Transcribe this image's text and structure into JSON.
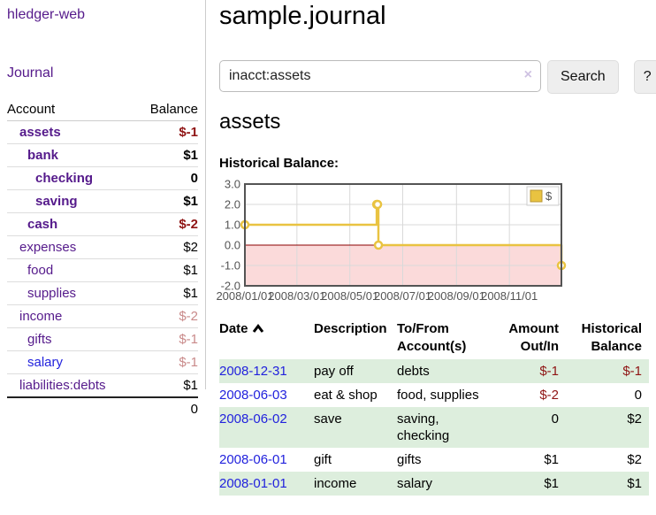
{
  "sidebar": {
    "app_title": "hledger-web",
    "nav_journal": "Journal",
    "accounts_table": {
      "header_account": "Account",
      "header_balance": "Balance",
      "rows": [
        {
          "name": "assets",
          "indent": 1,
          "bold": true,
          "link_color": "purple",
          "balance": "$-1",
          "balance_style": "neg-strong"
        },
        {
          "name": "bank",
          "indent": 2,
          "bold": true,
          "link_color": "purple",
          "balance": "$1",
          "balance_style": "pos"
        },
        {
          "name": "checking",
          "indent": 3,
          "bold": true,
          "link_color": "purple",
          "balance": "0",
          "balance_style": "pos"
        },
        {
          "name": "saving",
          "indent": 3,
          "bold": true,
          "link_color": "purple",
          "balance": "$1",
          "balance_style": "pos"
        },
        {
          "name": "cash",
          "indent": 2,
          "bold": true,
          "link_color": "purple",
          "balance": "$-2",
          "balance_style": "neg-strong"
        },
        {
          "name": "expenses",
          "indent": 1,
          "bold": false,
          "link_color": "purple",
          "balance": "$2",
          "balance_style": "pos"
        },
        {
          "name": "food",
          "indent": 2,
          "bold": false,
          "link_color": "purple",
          "balance": "$1",
          "balance_style": "pos"
        },
        {
          "name": "supplies",
          "indent": 2,
          "bold": false,
          "link_color": "purple",
          "balance": "$1",
          "balance_style": "pos"
        },
        {
          "name": "income",
          "indent": 1,
          "bold": false,
          "link_color": "purple",
          "balance": "$-2",
          "balance_style": "neg-soft"
        },
        {
          "name": "gifts",
          "indent": 2,
          "bold": false,
          "link_color": "purple",
          "balance": "$-1",
          "balance_style": "neg-soft"
        },
        {
          "name": "salary",
          "indent": 2,
          "bold": false,
          "link_color": "blue",
          "balance": "$-1",
          "balance_style": "neg-soft"
        },
        {
          "name": "liabilities:debts",
          "indent": 1,
          "bold": false,
          "link_color": "purple",
          "balance": "$1",
          "balance_style": "pos"
        }
      ],
      "total": "0"
    }
  },
  "header": {
    "title": "sample.journal"
  },
  "search": {
    "value": "inacct:assets",
    "clear_icon": "×",
    "button_label": "Search",
    "help_label": "?"
  },
  "main": {
    "account_heading": "assets"
  },
  "chart_data": {
    "type": "line",
    "step": true,
    "title": "Historical Balance:",
    "series": [
      {
        "name": "$",
        "color": "#e9c341",
        "points": [
          {
            "date": "2008-01-01",
            "value": 1
          },
          {
            "date": "2008-06-01",
            "value": 2
          },
          {
            "date": "2008-06-02",
            "value": 2
          },
          {
            "date": "2008-06-03",
            "value": 0
          },
          {
            "date": "2008-12-31",
            "value": -1
          }
        ]
      }
    ],
    "x_range": [
      "2008-01-01",
      "2008-12-31"
    ],
    "ylim": [
      -2,
      3
    ],
    "y_ticks": [
      3,
      2,
      1,
      0,
      -1,
      -2
    ],
    "x_ticks": [
      "2008/01/01",
      "2008/03/01",
      "2008/05/01",
      "2008/07/01",
      "2008/09/01",
      "2008/11/01"
    ],
    "legend_position": "top-right",
    "grid": true,
    "colors": {
      "grid": "#d9d9d9",
      "border": "#545454",
      "tick_text": "#545454",
      "zero_line": "#8b0000",
      "negative_region": "#fbdada",
      "legend_swatch_border": "#b89530",
      "legend_border": "#cccccc",
      "marker_fill": "#ffffff"
    }
  },
  "register_table": {
    "headers": {
      "date": "Date",
      "description": "Description",
      "accounts": "To/From Account(s)",
      "amount": "Amount Out/In",
      "balance": "Historical Balance"
    },
    "rows": [
      {
        "date": "2008-12-31",
        "description": "pay off",
        "accounts": "debts",
        "amount": "$-1",
        "amount_negative": true,
        "balance": "$-1",
        "balance_negative": true
      },
      {
        "date": "2008-06-03",
        "description": "eat & shop",
        "accounts": "food, supplies",
        "amount": "$-2",
        "amount_negative": true,
        "balance": "0",
        "balance_negative": false
      },
      {
        "date": "2008-06-02",
        "description": "save",
        "accounts": "saving, checking",
        "amount": "0",
        "amount_negative": false,
        "balance": "$2",
        "balance_negative": false
      },
      {
        "date": "2008-06-01",
        "description": "gift",
        "accounts": "gifts",
        "amount": "$1",
        "amount_negative": false,
        "balance": "$2",
        "balance_negative": false
      },
      {
        "date": "2008-01-01",
        "description": "income",
        "accounts": "salary",
        "amount": "$1",
        "amount_negative": false,
        "balance": "$1",
        "balance_negative": false
      }
    ]
  },
  "colors": {
    "link_purple": "#551a8b",
    "link_blue": "#2222dd",
    "negative_strong": "#8f1414",
    "negative_soft": "#c98a8a",
    "row_stripe_green": "#ddeedd",
    "button_bg": "#eeeeee"
  }
}
